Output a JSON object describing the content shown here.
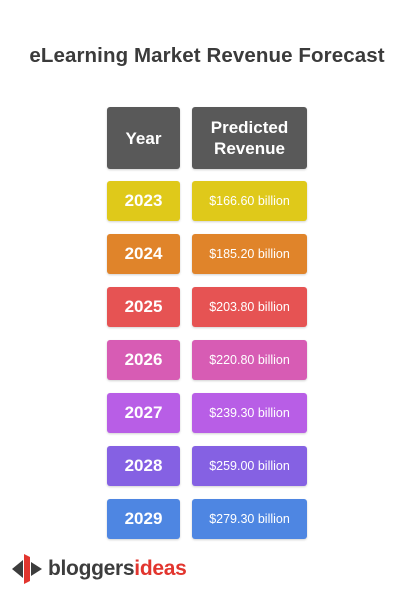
{
  "chart_data": {
    "type": "table",
    "title": "eLearning Market Revenue Forecast",
    "columns": [
      "Year",
      "Predicted\nRevenue"
    ],
    "rows": [
      {
        "year": "2023",
        "value_label": "$166.60 billion",
        "value": 166.6,
        "color": "#dfc91a"
      },
      {
        "year": "2024",
        "value_label": "$185.20 billion",
        "value": 185.2,
        "color": "#e0842a"
      },
      {
        "year": "2025",
        "value_label": "$203.80 billion",
        "value": 203.8,
        "color": "#e65353"
      },
      {
        "year": "2026",
        "value_label": "$220.80 billion",
        "value": 220.8,
        "color": "#d75cb4"
      },
      {
        "year": "2027",
        "value_label": "$239.30 billion",
        "value": 239.3,
        "color": "#b85ee6"
      },
      {
        "year": "2028",
        "value_label": "$259.00 billion",
        "value": 259.0,
        "color": "#8561e3"
      },
      {
        "year": "2029",
        "value_label": "$279.30 billion",
        "value": 279.3,
        "color": "#4e86e2"
      }
    ],
    "header_color": "#595959"
  },
  "logo": {
    "text_part1": "bloggers",
    "text_part2": "ideas",
    "icon": "bloggersideas-logo-icon",
    "colors": {
      "primary": "#e2352e",
      "dark": "#3d3d3d"
    }
  }
}
